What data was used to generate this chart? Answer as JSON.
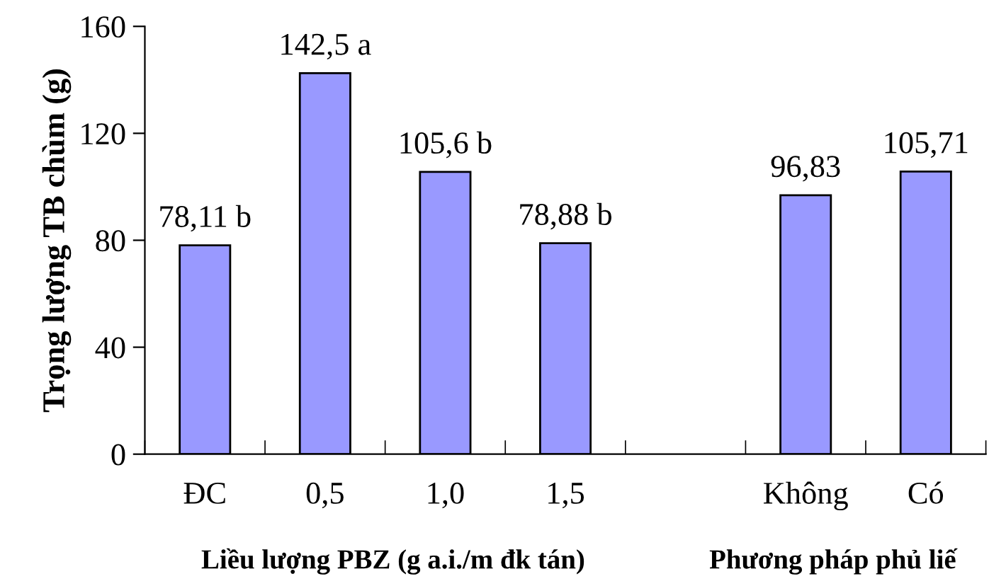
{
  "chart_data": {
    "type": "bar",
    "categories": [
      "ĐC",
      "0,5",
      "1,0",
      "1,5",
      null,
      "Không",
      "Có"
    ],
    "values": [
      78.11,
      142.5,
      105.6,
      78.88,
      null,
      96.83,
      105.71
    ],
    "value_labels": [
      "78,11 b",
      "142,5 a",
      "105,6 b",
      "78,88 b",
      null,
      "96,83",
      "105,71"
    ],
    "color": "#9999ff",
    "ylabel": "Trọng lượng TB chùm (g)",
    "annotations": [
      "Liều lượng PBZ (g a.i./m đk tán)",
      "Phương pháp phủ liế"
    ],
    "ylim": [
      0,
      160
    ],
    "yticks": [
      0,
      40,
      80,
      120,
      160
    ],
    "grid": false,
    "legend": false
  }
}
